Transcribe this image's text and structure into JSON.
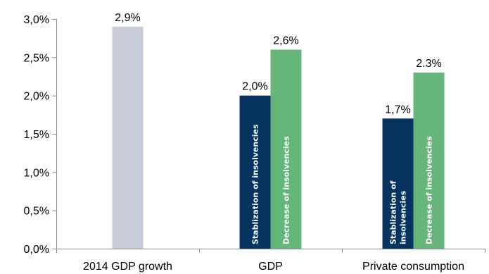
{
  "chart_data": {
    "type": "bar",
    "title": "",
    "xlabel": "",
    "ylabel": "",
    "ylim": [
      0,
      3.0
    ],
    "y_ticks": [
      "0,0%",
      "0,5%",
      "1,0%",
      "1,5%",
      "2,0%",
      "2,5%",
      "3,0%"
    ],
    "grid": false,
    "legend": "none",
    "categories": [
      "2014 GDP growth",
      "GDP",
      "Private consumption"
    ],
    "bars": [
      {
        "category_index": 0,
        "value": 2.9,
        "label": "2,9%",
        "color": "#c9cdd9",
        "inner_text": []
      },
      {
        "category_index": 1,
        "value": 2.0,
        "label": "2,0%",
        "color": "#06345f",
        "inner_text": [
          "Stablization of insolvencies"
        ]
      },
      {
        "category_index": 1,
        "value": 2.6,
        "label": "2,6%",
        "color": "#66b67c",
        "inner_text": [
          "Decrease of insolvencies"
        ]
      },
      {
        "category_index": 2,
        "value": 1.7,
        "label": "1,7%",
        "color": "#06345f",
        "inner_text": [
          "Stablization of",
          "insolvencies"
        ]
      },
      {
        "category_index": 2,
        "value": 2.3,
        "label": "2.3%",
        "color": "#66b67c",
        "inner_text": [
          "Decrease of insolvencies"
        ]
      }
    ]
  }
}
